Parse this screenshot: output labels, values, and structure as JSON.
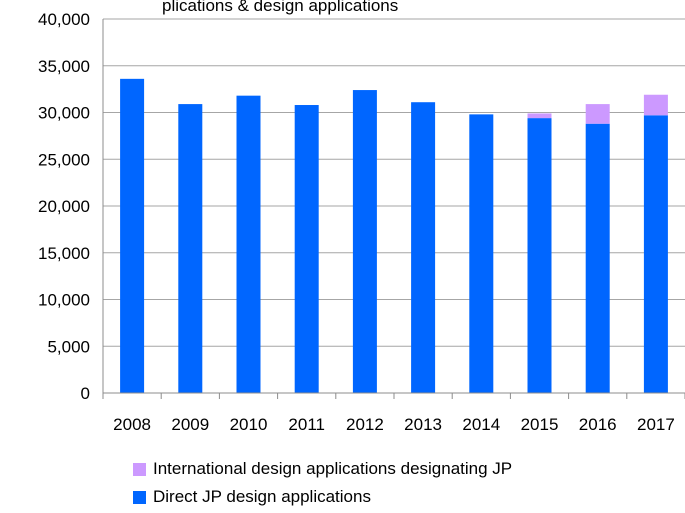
{
  "chart_data": {
    "type": "bar",
    "stacked": true,
    "title": "",
    "title_partial_visible": "plications & design applications",
    "categories": [
      "2008",
      "2009",
      "2010",
      "2011",
      "2012",
      "2013",
      "2014",
      "2015",
      "2016",
      "2017"
    ],
    "series": [
      {
        "name": "Direct JP design applications",
        "color": "#0066ff",
        "values": [
          33600,
          30900,
          31800,
          30800,
          32400,
          31100,
          29800,
          29400,
          28800,
          29700
        ]
      },
      {
        "name": "International design applications designating JP",
        "color": "#cc99ff",
        "values": [
          0,
          0,
          0,
          0,
          0,
          0,
          0,
          500,
          2100,
          2200
        ]
      }
    ],
    "ylim": [
      0,
      40000
    ],
    "yticks": [
      "0",
      "5,000",
      "10,000",
      "15,000",
      "20,000",
      "25,000",
      "30,000",
      "35,000",
      "40,000"
    ],
    "ytick_values": [
      0,
      5000,
      10000,
      15000,
      20000,
      25000,
      30000,
      35000,
      40000
    ],
    "grid": true,
    "legend_position": "bottom"
  }
}
